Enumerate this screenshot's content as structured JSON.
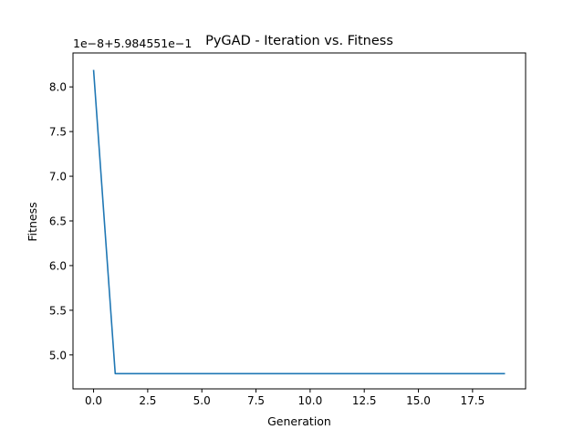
{
  "chart_data": {
    "type": "line",
    "title": "PyGAD - Iteration vs. Fitness",
    "xlabel": "Generation",
    "ylabel": "Fitness",
    "offset_label": "1e−8+5.984551e−1",
    "xlim": [
      -0.95,
      19.95
    ],
    "ylim": [
      4.62,
      8.38
    ],
    "x_ticks": [
      0,
      2.5,
      5,
      7.5,
      10,
      12.5,
      15,
      17.5
    ],
    "x_tick_labels": [
      "0.0",
      "2.5",
      "5.0",
      "7.5",
      "10.0",
      "12.5",
      "15.0",
      "17.5"
    ],
    "y_ticks": [
      5.0,
      5.5,
      6.0,
      6.5,
      7.0,
      7.5,
      8.0
    ],
    "y_tick_labels": [
      "5.0",
      "5.5",
      "6.0",
      "6.5",
      "7.0",
      "7.5",
      "8.0"
    ],
    "grid": false,
    "series": [
      {
        "color": "#1f77b4",
        "x": [
          0,
          1,
          2,
          3,
          4,
          5,
          6,
          7,
          8,
          9,
          10,
          11,
          12,
          13,
          14,
          15,
          16,
          17,
          18,
          19
        ],
        "y": [
          8.19,
          4.79,
          4.79,
          4.79,
          4.79,
          4.79,
          4.79,
          4.79,
          4.79,
          4.79,
          4.79,
          4.79,
          4.79,
          4.79,
          4.79,
          4.79,
          4.79,
          4.79,
          4.79,
          4.79
        ]
      }
    ]
  }
}
